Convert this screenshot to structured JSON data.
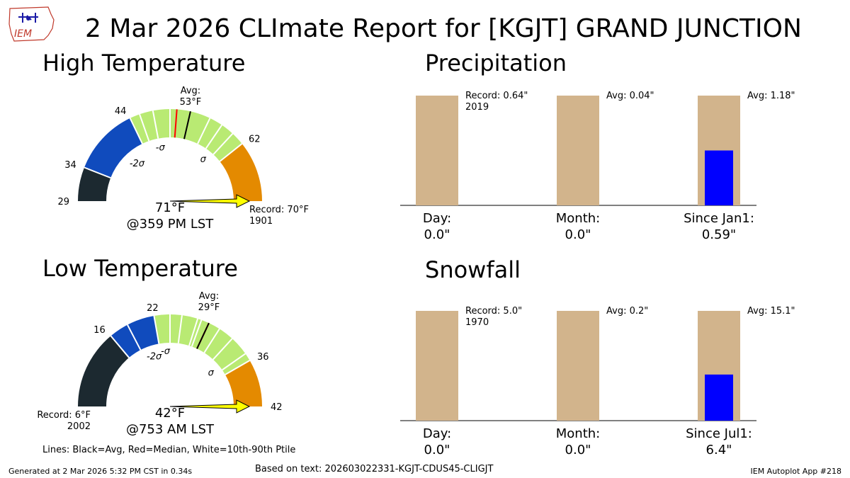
{
  "header": {
    "title": "2 Mar 2026 CLImate Report for [KGJT] GRAND JUNCTION",
    "logo_text": "IEM"
  },
  "footer": {
    "generated": "Generated at 2 Mar 2026 5:32 PM CST in 0.34s",
    "based_on": "Based on text: 202603022331-KGJT-CDUS45-CLIGJT",
    "app": "IEM Autoplot App #218",
    "lines_legend": "Lines: Black=Avg, Red=Median, White=10th-90th Ptile"
  },
  "colors": {
    "gauge_dark": "#1c2930",
    "gauge_blue": "#104bbd",
    "gauge_green": "#b9ea73",
    "gauge_orange": "#e48a00",
    "arrow_yellow": "#ffff00",
    "bar_tan": "#d2b48c",
    "bar_blue": "#0000ff",
    "median_red": "#ff0000"
  },
  "chart_data": [
    {
      "type": "gauge",
      "title": "High Temperature",
      "range": [
        29,
        71
      ],
      "bands": [
        {
          "from": 29,
          "to": 34,
          "color": "dark"
        },
        {
          "from": 34,
          "to": 44,
          "color": "blue"
        },
        {
          "from": 44,
          "to": 62,
          "color": "green"
        },
        {
          "from": 62,
          "to": 71,
          "color": "orange"
        }
      ],
      "ticks": [
        29,
        34,
        44,
        62
      ],
      "sigma_labels": [
        {
          "value": 39,
          "text": "-2σ"
        },
        {
          "value": 46.5,
          "text": "-σ"
        },
        {
          "value": 59.5,
          "text": "σ"
        }
      ],
      "percentile_lines": [
        45.5,
        47.5,
        50,
        56,
        58,
        60
      ],
      "median": 51,
      "avg": 53,
      "avg_label": "Avg:",
      "avg_value": "53°F",
      "observed": 71,
      "observed_label": "71°F",
      "time_label": "@359 PM LST",
      "record_label": "Record: 70°F",
      "record_year": "1901",
      "record_value": 70
    },
    {
      "type": "gauge",
      "title": "Low Temperature",
      "range": [
        6,
        42
      ],
      "bands": [
        {
          "from": 6,
          "to": 16,
          "color": "dark"
        },
        {
          "from": 16,
          "to": 22,
          "color": "blue"
        },
        {
          "from": 22,
          "to": 36,
          "color": "green"
        },
        {
          "from": 36,
          "to": 42,
          "color": "orange"
        }
      ],
      "ticks": [
        16,
        22,
        36,
        42
      ],
      "sigma_labels": [
        {
          "value": 19,
          "text": "-2σ"
        },
        {
          "value": 24,
          "text": "-σ"
        },
        {
          "value": 34.5,
          "text": "σ"
        }
      ],
      "percentile_lines": [
        18.5,
        24,
        25.5,
        27.5,
        28,
        30.5,
        32.5,
        35
      ],
      "median": 29,
      "avg": 29,
      "avg_label": "Avg:",
      "avg_value": "29°F",
      "observed": 42,
      "observed_label": "42°F",
      "time_label": "@753 AM LST",
      "record_label": "Record: 6°F",
      "record_year": "2002",
      "record_value": 6
    },
    {
      "type": "bar",
      "title": "Precipitation",
      "categories": [
        "Day:",
        "Month:",
        "Since Jan1:"
      ],
      "values_label": [
        "0.0\"",
        "0.0\"",
        "0.59\""
      ],
      "normalized_filled": [
        0.0,
        0.0,
        0.5
      ],
      "annotations": [
        {
          "text": "Record: 0.64\"",
          "sub": "2019"
        },
        {
          "text": "Avg: 0.04\"",
          "sub": ""
        },
        {
          "text": "Avg: 1.18\"",
          "sub": ""
        }
      ]
    },
    {
      "type": "bar",
      "title": "Snowfall",
      "categories": [
        "Day:",
        "Month:",
        "Since Jul1:"
      ],
      "values_label": [
        "0.0\"",
        "0.0\"",
        "6.4\""
      ],
      "normalized_filled": [
        0.0,
        0.0,
        0.42
      ],
      "annotations": [
        {
          "text": "Record: 5.0\"",
          "sub": "1970"
        },
        {
          "text": "Avg: 0.2\"",
          "sub": ""
        },
        {
          "text": "Avg: 15.1\"",
          "sub": ""
        }
      ]
    }
  ]
}
